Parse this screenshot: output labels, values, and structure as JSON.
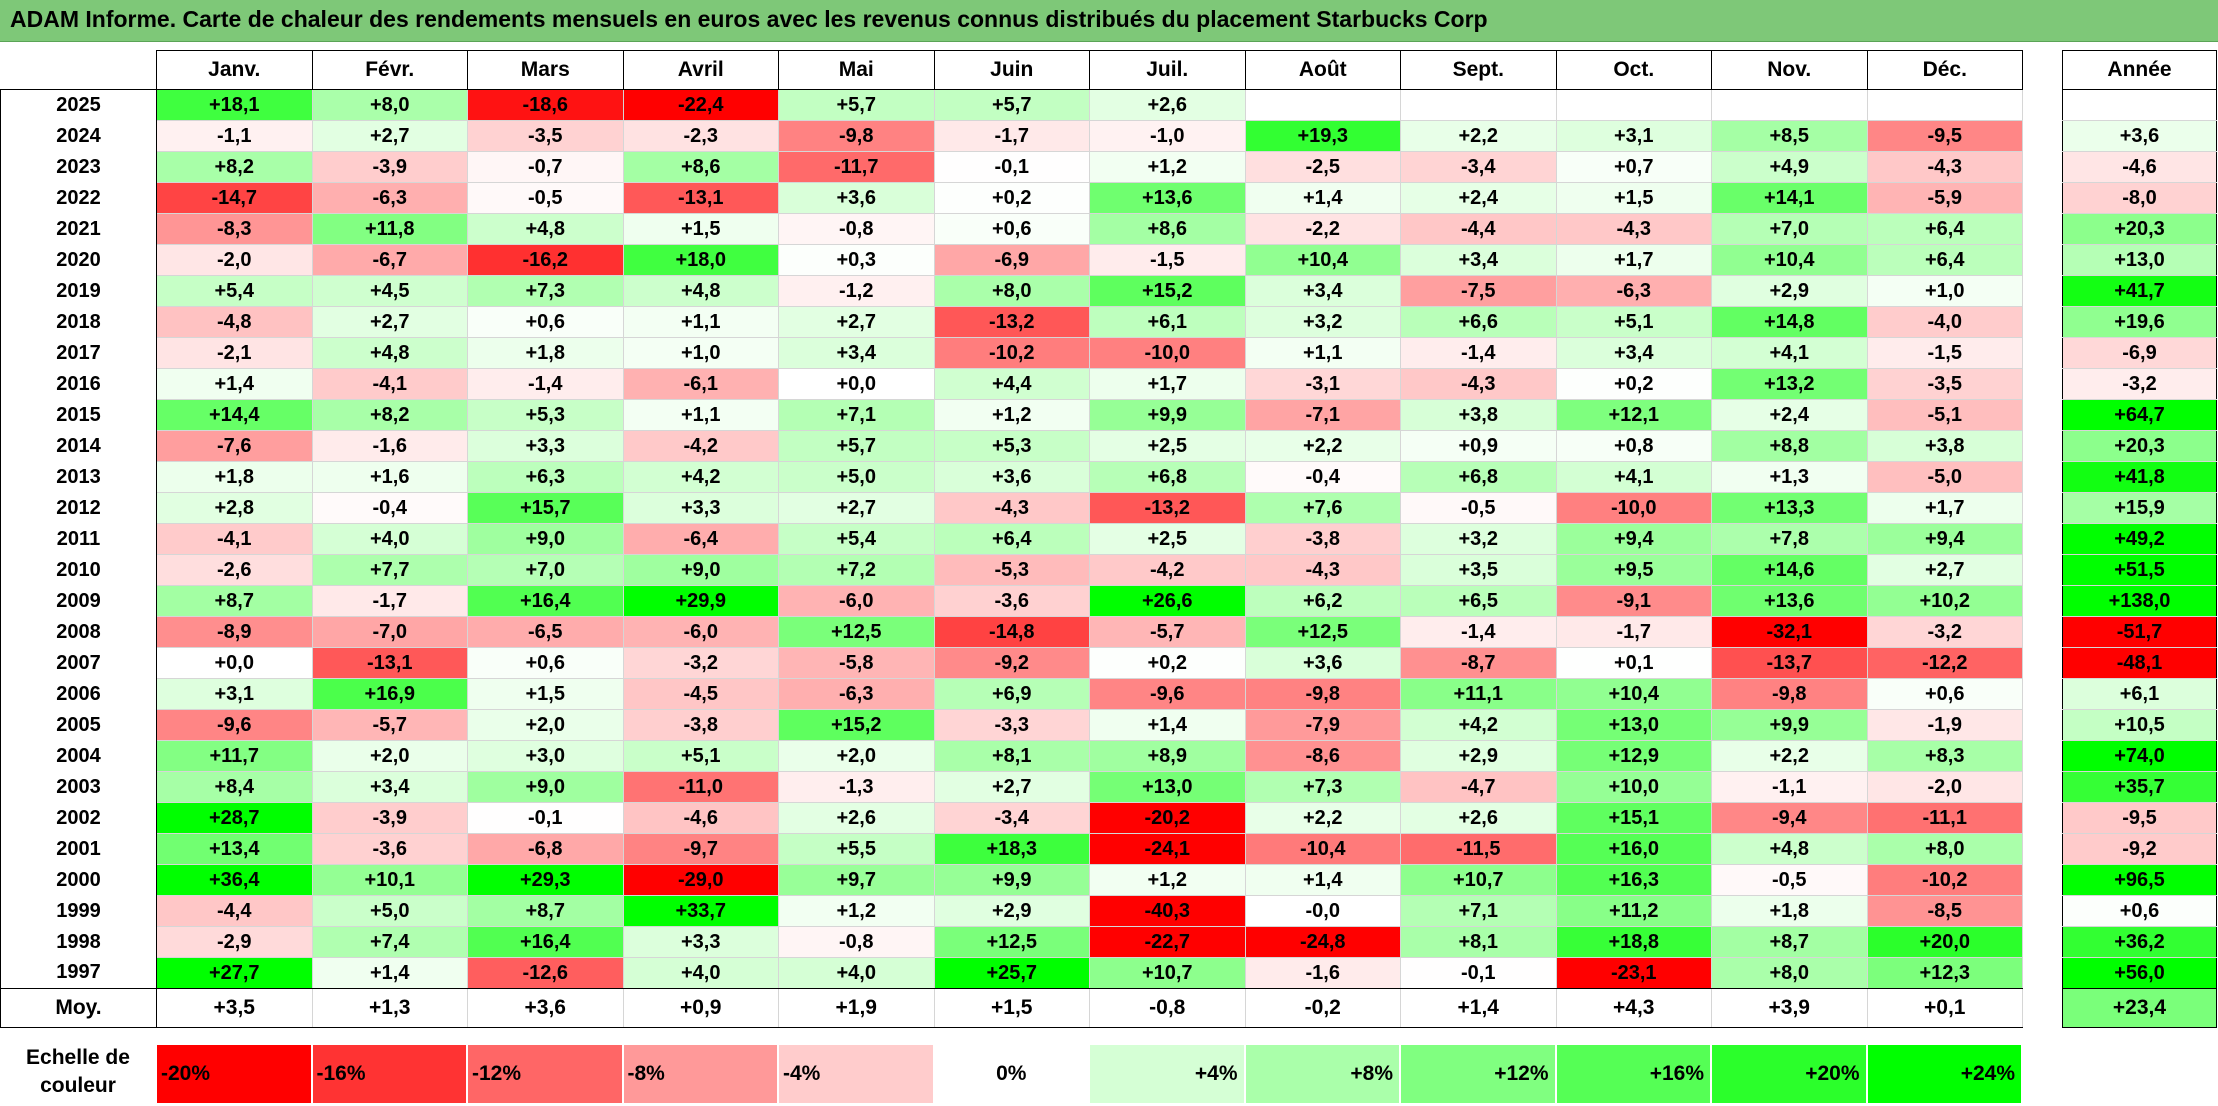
{
  "title": "ADAM Informe. Carte de chaleur des rendements mensuels en euros avec les revenus connus distribués du placement Starbucks Corp",
  "chart_data": {
    "type": "heatmap",
    "title": "ADAM Informe. Carte de chaleur des rendements mensuels en euros avec les revenus connus distribués du placement Starbucks Corp",
    "months": [
      "Janv.",
      "Févr.",
      "Mars",
      "Avril",
      "Mai",
      "Juin",
      "Juil.",
      "Août",
      "Sept.",
      "Oct.",
      "Nov.",
      "Déc."
    ],
    "year_header": "Année",
    "rows": [
      {
        "year": "2025",
        "values": [
          "+18,1",
          "+8,0",
          "-18,6",
          "-22,4",
          "+5,7",
          "+5,7",
          "+2,6",
          "",
          "",
          "",
          "",
          ""
        ],
        "annual": ""
      },
      {
        "year": "2024",
        "values": [
          "-1,1",
          "+2,7",
          "-3,5",
          "-2,3",
          "-9,8",
          "-1,7",
          "-1,0",
          "+19,3",
          "+2,2",
          "+3,1",
          "+8,5",
          "-9,5"
        ],
        "annual": "+3,6"
      },
      {
        "year": "2023",
        "values": [
          "+8,2",
          "-3,9",
          "-0,7",
          "+8,6",
          "-11,7",
          "-0,1",
          "+1,2",
          "-2,5",
          "-3,4",
          "+0,7",
          "+4,9",
          "-4,3"
        ],
        "annual": "-4,6"
      },
      {
        "year": "2022",
        "values": [
          "-14,7",
          "-6,3",
          "-0,5",
          "-13,1",
          "+3,6",
          "+0,2",
          "+13,6",
          "+1,4",
          "+2,4",
          "+1,5",
          "+14,1",
          "-5,9"
        ],
        "annual": "-8,0"
      },
      {
        "year": "2021",
        "values": [
          "-8,3",
          "+11,8",
          "+4,8",
          "+1,5",
          "-0,8",
          "+0,6",
          "+8,6",
          "-2,2",
          "-4,4",
          "-4,3",
          "+7,0",
          "+6,4"
        ],
        "annual": "+20,3"
      },
      {
        "year": "2020",
        "values": [
          "-2,0",
          "-6,7",
          "-16,2",
          "+18,0",
          "+0,3",
          "-6,9",
          "-1,5",
          "+10,4",
          "+3,4",
          "+1,7",
          "+10,4",
          "+6,4"
        ],
        "annual": "+13,0"
      },
      {
        "year": "2019",
        "values": [
          "+5,4",
          "+4,5",
          "+7,3",
          "+4,8",
          "-1,2",
          "+8,0",
          "+15,2",
          "+3,4",
          "-7,5",
          "-6,3",
          "+2,9",
          "+1,0"
        ],
        "annual": "+41,7"
      },
      {
        "year": "2018",
        "values": [
          "-4,8",
          "+2,7",
          "+0,6",
          "+1,1",
          "+2,7",
          "-13,2",
          "+6,1",
          "+3,2",
          "+6,6",
          "+5,1",
          "+14,8",
          "-4,0"
        ],
        "annual": "+19,6"
      },
      {
        "year": "2017",
        "values": [
          "-2,1",
          "+4,8",
          "+1,8",
          "+1,0",
          "+3,4",
          "-10,2",
          "-10,0",
          "+1,1",
          "-1,4",
          "+3,4",
          "+4,1",
          "-1,5"
        ],
        "annual": "-6,9"
      },
      {
        "year": "2016",
        "values": [
          "+1,4",
          "-4,1",
          "-1,4",
          "-6,1",
          "+0,0",
          "+4,4",
          "+1,7",
          "-3,1",
          "-4,3",
          "+0,2",
          "+13,2",
          "-3,5"
        ],
        "annual": "-3,2"
      },
      {
        "year": "2015",
        "values": [
          "+14,4",
          "+8,2",
          "+5,3",
          "+1,1",
          "+7,1",
          "+1,2",
          "+9,9",
          "-7,1",
          "+3,8",
          "+12,1",
          "+2,4",
          "-5,1"
        ],
        "annual": "+64,7"
      },
      {
        "year": "2014",
        "values": [
          "-7,6",
          "-1,6",
          "+3,3",
          "-4,2",
          "+5,7",
          "+5,3",
          "+2,5",
          "+2,2",
          "+0,9",
          "+0,8",
          "+8,8",
          "+3,8"
        ],
        "annual": "+20,3"
      },
      {
        "year": "2013",
        "values": [
          "+1,8",
          "+1,6",
          "+6,3",
          "+4,2",
          "+5,0",
          "+3,6",
          "+6,8",
          "-0,4",
          "+6,8",
          "+4,1",
          "+1,3",
          "-5,0"
        ],
        "annual": "+41,8"
      },
      {
        "year": "2012",
        "values": [
          "+2,8",
          "-0,4",
          "+15,7",
          "+3,3",
          "+2,7",
          "-4,3",
          "-13,2",
          "+7,6",
          "-0,5",
          "-10,0",
          "+13,3",
          "+1,7"
        ],
        "annual": "+15,9"
      },
      {
        "year": "2011",
        "values": [
          "-4,1",
          "+4,0",
          "+9,0",
          "-6,4",
          "+5,4",
          "+6,4",
          "+2,5",
          "-3,8",
          "+3,2",
          "+9,4",
          "+7,8",
          "+9,4"
        ],
        "annual": "+49,2"
      },
      {
        "year": "2010",
        "values": [
          "-2,6",
          "+7,7",
          "+7,0",
          "+9,0",
          "+7,2",
          "-5,3",
          "-4,2",
          "-4,3",
          "+3,5",
          "+9,5",
          "+14,6",
          "+2,7"
        ],
        "annual": "+51,5"
      },
      {
        "year": "2009",
        "values": [
          "+8,7",
          "-1,7",
          "+16,4",
          "+29,9",
          "-6,0",
          "-3,6",
          "+26,6",
          "+6,2",
          "+6,5",
          "-9,1",
          "+13,6",
          "+10,2"
        ],
        "annual": "+138,0"
      },
      {
        "year": "2008",
        "values": [
          "-8,9",
          "-7,0",
          "-6,5",
          "-6,0",
          "+12,5",
          "-14,8",
          "-5,7",
          "+12,5",
          "-1,4",
          "-1,7",
          "-32,1",
          "-3,2"
        ],
        "annual": "-51,7"
      },
      {
        "year": "2007",
        "values": [
          "+0,0",
          "-13,1",
          "+0,6",
          "-3,2",
          "-5,8",
          "-9,2",
          "+0,2",
          "+3,6",
          "-8,7",
          "+0,1",
          "-13,7",
          "-12,2"
        ],
        "annual": "-48,1"
      },
      {
        "year": "2006",
        "values": [
          "+3,1",
          "+16,9",
          "+1,5",
          "-4,5",
          "-6,3",
          "+6,9",
          "-9,6",
          "-9,8",
          "+11,1",
          "+10,4",
          "-9,8",
          "+0,6"
        ],
        "annual": "+6,1"
      },
      {
        "year": "2005",
        "values": [
          "-9,6",
          "-5,7",
          "+2,0",
          "-3,8",
          "+15,2",
          "-3,3",
          "+1,4",
          "-7,9",
          "+4,2",
          "+13,0",
          "+9,9",
          "-1,9"
        ],
        "annual": "+10,5"
      },
      {
        "year": "2004",
        "values": [
          "+11,7",
          "+2,0",
          "+3,0",
          "+5,1",
          "+2,0",
          "+8,1",
          "+8,9",
          "-8,6",
          "+2,9",
          "+12,9",
          "+2,2",
          "+8,3"
        ],
        "annual": "+74,0"
      },
      {
        "year": "2003",
        "values": [
          "+8,4",
          "+3,4",
          "+9,0",
          "-11,0",
          "-1,3",
          "+2,7",
          "+13,0",
          "+7,3",
          "-4,7",
          "+10,0",
          "-1,1",
          "-2,0"
        ],
        "annual": "+35,7"
      },
      {
        "year": "2002",
        "values": [
          "+28,7",
          "-3,9",
          "-0,1",
          "-4,6",
          "+2,6",
          "-3,4",
          "-20,2",
          "+2,2",
          "+2,6",
          "+15,1",
          "-9,4",
          "-11,1"
        ],
        "annual": "-9,5"
      },
      {
        "year": "2001",
        "values": [
          "+13,4",
          "-3,6",
          "-6,8",
          "-9,7",
          "+5,5",
          "+18,3",
          "-24,1",
          "-10,4",
          "-11,5",
          "+16,0",
          "+4,8",
          "+8,0"
        ],
        "annual": "-9,2"
      },
      {
        "year": "2000",
        "values": [
          "+36,4",
          "+10,1",
          "+29,3",
          "-29,0",
          "+9,7",
          "+9,9",
          "+1,2",
          "+1,4",
          "+10,7",
          "+16,3",
          "-0,5",
          "-10,2"
        ],
        "annual": "+96,5"
      },
      {
        "year": "1999",
        "values": [
          "-4,4",
          "+5,0",
          "+8,7",
          "+33,7",
          "+1,2",
          "+2,9",
          "-40,3",
          "-0,0",
          "+7,1",
          "+11,2",
          "+1,8",
          "-8,5"
        ],
        "annual": "+0,6"
      },
      {
        "year": "1998",
        "values": [
          "-2,9",
          "+7,4",
          "+16,4",
          "+3,3",
          "-0,8",
          "+12,5",
          "-22,7",
          "-24,8",
          "+8,1",
          "+18,8",
          "+8,7",
          "+20,0"
        ],
        "annual": "+36,2"
      },
      {
        "year": "1997",
        "values": [
          "+27,7",
          "+1,4",
          "-12,6",
          "+4,0",
          "+4,0",
          "+25,7",
          "+10,7",
          "-1,6",
          "-0,1",
          "-23,1",
          "+8,0",
          "+12,3"
        ],
        "annual": "+56,0"
      }
    ],
    "average": {
      "label": "Moy.",
      "values": [
        "+3,5",
        "+1,3",
        "+3,6",
        "+0,9",
        "+1,9",
        "+1,5",
        "-0,8",
        "-0,2",
        "+1,4",
        "+4,3",
        "+3,9",
        "+0,1"
      ],
      "annual": "+23,4"
    },
    "scale": {
      "label_line1": "Echelle de",
      "label_line2": "couleur",
      "stops": [
        "-20%",
        "-16%",
        "-12%",
        "-8%",
        "-4%",
        "0%",
        "+4%",
        "+8%",
        "+12%",
        "+16%",
        "+20%",
        "+24%"
      ]
    },
    "colors": {
      "negative": "#ff0000",
      "neutral": "#ffffff",
      "positive": "#00ff00"
    }
  }
}
